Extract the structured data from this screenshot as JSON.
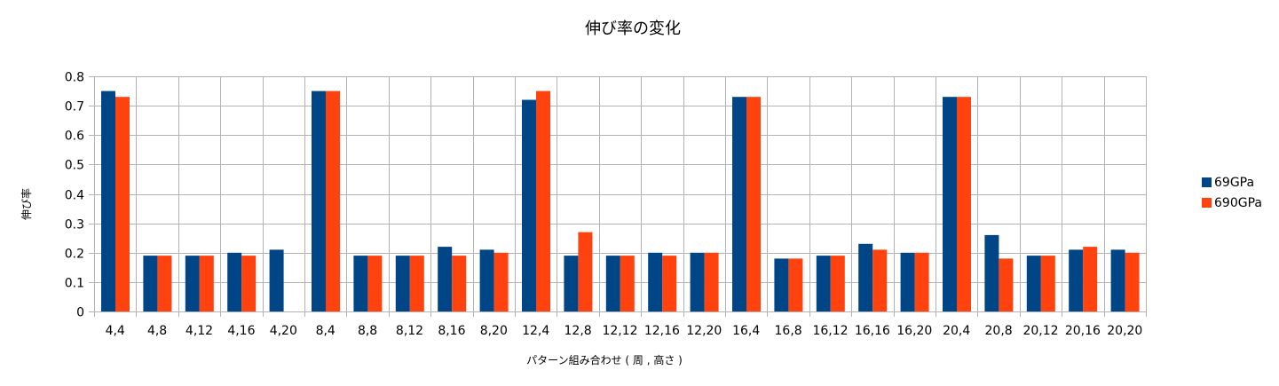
{
  "chart_data": {
    "type": "bar",
    "title": "伸び率の変化",
    "xlabel": "パターン組み合わせ ( 周 , 高さ )",
    "ylabel": "伸び率",
    "ylim": [
      0,
      0.8
    ],
    "yticks": [
      "0",
      "0.1",
      "0.2",
      "0.3",
      "0.4",
      "0.5",
      "0.6",
      "0.7",
      "0.8"
    ],
    "grid": true,
    "legend_position": "right",
    "categories": [
      "4,4",
      "4,8",
      "4,12",
      "4,16",
      "4,20",
      "8,4",
      "8,8",
      "8,12",
      "8,16",
      "8,20",
      "12,4",
      "12,8",
      "12,12",
      "12,16",
      "12,20",
      "16,4",
      "16,8",
      "16,12",
      "16,16",
      "16,20",
      "20,4",
      "20,8",
      "20,12",
      "20,16",
      "20,20"
    ],
    "series": [
      {
        "name": "69GPa",
        "color": "#004586",
        "values": [
          0.75,
          0.19,
          0.19,
          0.2,
          0.21,
          0.75,
          0.19,
          0.19,
          0.22,
          0.21,
          0.72,
          0.19,
          0.19,
          0.2,
          0.2,
          0.73,
          0.18,
          0.19,
          0.23,
          0.2,
          0.73,
          0.26,
          0.19,
          0.21,
          0.21
        ]
      },
      {
        "name": "690GPa",
        "color": "#ff420e",
        "values": [
          0.73,
          0.19,
          0.19,
          0.19,
          null,
          0.75,
          0.19,
          0.19,
          0.19,
          0.2,
          0.75,
          0.27,
          0.19,
          0.19,
          0.2,
          0.73,
          0.18,
          0.19,
          0.21,
          0.2,
          0.73,
          0.18,
          0.19,
          0.22,
          0.2
        ]
      }
    ]
  }
}
